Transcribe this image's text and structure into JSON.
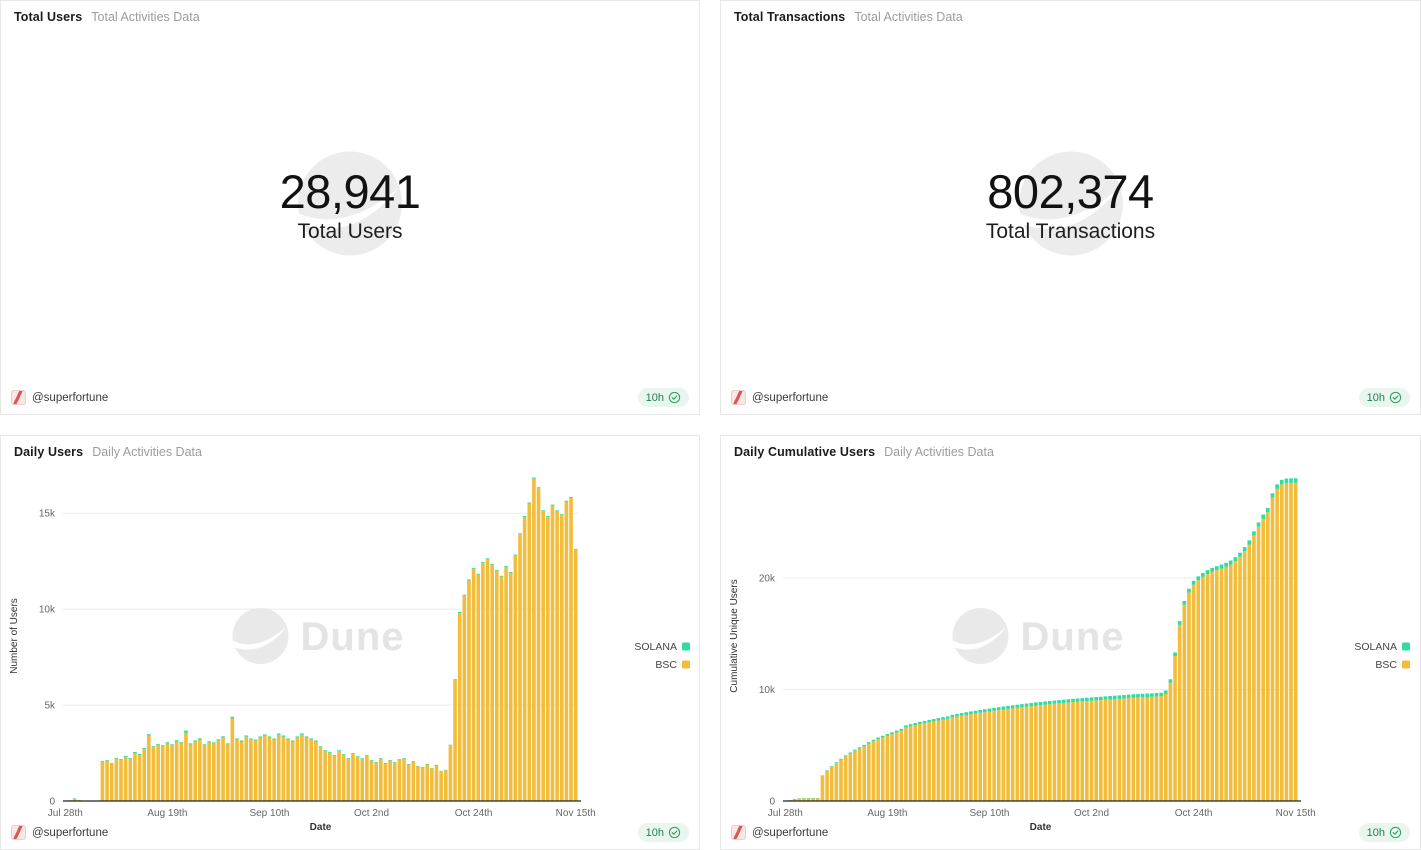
{
  "colors": {
    "solana": "#30DCA0",
    "bsc": "#F3BD3C",
    "badge_bg": "#E9F6EF",
    "badge_text": "#1F8150",
    "watermark_gray": "#E9E9E9",
    "gridline": "#ECECEC",
    "axis": "#222222"
  },
  "footer": {
    "author": "@superfortune",
    "refresh_age": "10h",
    "verified_icon": "check-rosette-icon"
  },
  "panels": {
    "total_users": {
      "title": "Total Users",
      "subtitle": "Total Activities Data",
      "value": "28,941",
      "label": "Total Users"
    },
    "total_transactions": {
      "title": "Total Transactions",
      "subtitle": "Total Activities Data",
      "value": "802,374",
      "label": "Total Transactions"
    },
    "daily_users": {
      "title": "Daily Users",
      "subtitle": "Daily Activities Data"
    },
    "daily_cumulative_users": {
      "title": "Daily Cumulative Users",
      "subtitle": "Daily Activities Data"
    }
  },
  "chart_data": [
    {
      "id": "daily_users",
      "type": "bar",
      "stacked": true,
      "title": "Daily Users",
      "xlabel": "Date",
      "ylabel": "Number of Users",
      "ylim": [
        0,
        17200
      ],
      "grid": true,
      "legend_position": "right",
      "watermark": "Dune",
      "points": 111,
      "date_range": [
        "Jul 28th",
        "Nov 15th"
      ],
      "yticks": [
        {
          "value": 0,
          "label": "0"
        },
        {
          "value": 5000,
          "label": "5k"
        },
        {
          "value": 10000,
          "label": "10k"
        },
        {
          "value": 15000,
          "label": "15k"
        }
      ],
      "xticks": [
        {
          "index": 0,
          "label": "Jul 28th"
        },
        {
          "index": 22,
          "label": "Aug 19th"
        },
        {
          "index": 44,
          "label": "Sep 10th"
        },
        {
          "index": 66,
          "label": "Oct 2nd"
        },
        {
          "index": 88,
          "label": "Oct 24th"
        },
        {
          "index": 110,
          "label": "Nov 15th"
        }
      ],
      "stack_bottom": "BSC",
      "series": [
        {
          "name": "SOLANA",
          "color": "#30DCA0",
          "values": [
            0,
            0,
            5,
            0,
            0,
            0,
            0,
            0,
            40,
            35,
            30,
            45,
            40,
            50,
            45,
            55,
            50,
            60,
            80,
            55,
            60,
            55,
            60,
            55,
            65,
            60,
            120,
            55,
            60,
            65,
            55,
            60,
            55,
            65,
            70,
            55,
            90,
            60,
            55,
            65,
            60,
            55,
            65,
            70,
            65,
            60,
            70,
            65,
            60,
            55,
            65,
            70,
            65,
            60,
            55,
            50,
            45,
            45,
            40,
            45,
            40,
            35,
            40,
            35,
            35,
            40,
            35,
            30,
            35,
            30,
            35,
            30,
            35,
            35,
            30,
            30,
            25,
            25,
            30,
            25,
            30,
            25,
            25,
            35,
            45,
            50,
            50,
            50,
            50,
            45,
            50,
            50,
            45,
            45,
            40,
            45,
            40,
            45,
            50,
            50,
            55,
            60,
            55,
            50,
            50,
            50,
            50,
            45,
            50,
            50,
            40
          ]
        },
        {
          "name": "BSC",
          "color": "#F3BD3C",
          "values": [
            0,
            40,
            130,
            60,
            10,
            10,
            10,
            10,
            2050,
            2100,
            1950,
            2200,
            2150,
            2300,
            2200,
            2500,
            2400,
            2700,
            3400,
            2800,
            2900,
            2850,
            3000,
            2900,
            3100,
            3000,
            3550,
            2950,
            3100,
            3200,
            2900,
            3050,
            3000,
            3150,
            3300,
            2950,
            4300,
            3200,
            3100,
            3350,
            3200,
            3150,
            3300,
            3400,
            3300,
            3200,
            3450,
            3350,
            3200,
            3100,
            3300,
            3450,
            3300,
            3200,
            3100,
            2800,
            2600,
            2500,
            2350,
            2600,
            2400,
            2200,
            2450,
            2300,
            2200,
            2350,
            2100,
            2000,
            2200,
            1950,
            2100,
            2000,
            2150,
            2200,
            1900,
            2050,
            1800,
            1750,
            1900,
            1700,
            1850,
            1550,
            1600,
            2900,
            6300,
            9800,
            10700,
            11500,
            12100,
            11800,
            12400,
            12600,
            12300,
            12000,
            11700,
            12200,
            11900,
            12800,
            13900,
            14800,
            15500,
            16800,
            16300,
            15100,
            14800,
            15400,
            15100,
            14900,
            15600,
            15800,
            13100
          ]
        }
      ]
    },
    {
      "id": "daily_cumulative_users",
      "type": "bar",
      "stacked": true,
      "title": "Daily Cumulative Users",
      "xlabel": "Date",
      "ylabel": "Cumulative Unique Users",
      "ylim": [
        0,
        29600
      ],
      "grid": true,
      "legend_position": "right",
      "watermark": "Dune",
      "points": 111,
      "date_range": [
        "Jul 28th",
        "Nov 15th"
      ],
      "yticks": [
        {
          "value": 0,
          "label": "0"
        },
        {
          "value": 10000,
          "label": "10k"
        },
        {
          "value": 20000,
          "label": "20k"
        }
      ],
      "xticks": [
        {
          "index": 0,
          "label": "Jul 28th"
        },
        {
          "index": 22,
          "label": "Aug 19th"
        },
        {
          "index": 44,
          "label": "Sep 10th"
        },
        {
          "index": 66,
          "label": "Oct 2nd"
        },
        {
          "index": 88,
          "label": "Oct 24th"
        },
        {
          "index": 110,
          "label": "Nov 15th"
        }
      ],
      "stack_bottom": "BSC",
      "series": [
        {
          "name": "SOLANA",
          "color": "#30DCA0",
          "values": [
            0,
            2,
            6,
            8,
            10,
            10,
            12,
            12,
            45,
            55,
            65,
            75,
            85,
            92,
            100,
            108,
            115,
            122,
            132,
            138,
            145,
            150,
            156,
            162,
            168,
            174,
            185,
            190,
            195,
            200,
            204,
            208,
            212,
            216,
            220,
            224,
            230,
            234,
            238,
            242,
            246,
            249,
            252,
            255,
            258,
            261,
            264,
            267,
            270,
            272,
            274,
            276,
            278,
            280,
            282,
            284,
            286,
            288,
            290,
            292,
            294,
            295,
            297,
            298,
            299,
            300,
            301,
            302,
            303,
            304,
            305,
            306,
            307,
            308,
            309,
            310,
            310,
            311,
            311,
            312,
            312,
            313,
            315,
            320,
            328,
            335,
            340,
            344,
            348,
            351,
            354,
            357,
            359,
            361,
            363,
            365,
            367,
            370,
            373,
            377,
            381,
            386,
            390,
            393,
            395,
            397,
            399,
            400,
            401,
            401,
            401
          ]
        },
        {
          "name": "BSC",
          "color": "#F3BD3C",
          "values": [
            30,
            60,
            180,
            230,
            240,
            250,
            255,
            260,
            2250,
            2700,
            3050,
            3400,
            3700,
            4000,
            4250,
            4500,
            4700,
            4900,
            5150,
            5350,
            5550,
            5700,
            5850,
            6000,
            6150,
            6300,
            6600,
            6700,
            6800,
            6900,
            6980,
            7060,
            7140,
            7220,
            7300,
            7370,
            7500,
            7580,
            7650,
            7720,
            7790,
            7850,
            7910,
            7970,
            8030,
            8090,
            8150,
            8210,
            8260,
            8310,
            8360,
            8410,
            8460,
            8510,
            8560,
            8600,
            8640,
            8680,
            8720,
            8760,
            8800,
            8830,
            8870,
            8900,
            8930,
            8960,
            8990,
            9020,
            9050,
            9080,
            9110,
            9140,
            9170,
            9200,
            9230,
            9260,
            9280,
            9300,
            9330,
            9350,
            9380,
            9400,
            9600,
            10600,
            13000,
            15800,
            17600,
            18700,
            19400,
            19800,
            20100,
            20350,
            20550,
            20700,
            20850,
            21000,
            21200,
            21500,
            21900,
            22400,
            23000,
            23800,
            24600,
            25300,
            25900,
            27200,
            28000,
            28400,
            28520,
            28540,
            28540
          ]
        }
      ]
    }
  ]
}
